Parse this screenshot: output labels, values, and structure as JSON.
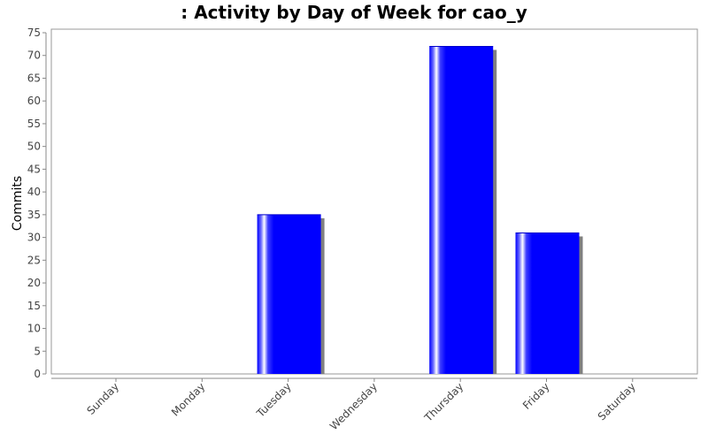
{
  "chart_data": {
    "type": "bar",
    "title": ": Activity by Day of Week for cao_y",
    "xlabel": "",
    "ylabel": "Commits",
    "categories": [
      "Sunday",
      "Monday",
      "Tuesday",
      "Wednesday",
      "Thursday",
      "Friday",
      "Saturday"
    ],
    "values": [
      0,
      0,
      35,
      0,
      72,
      31,
      0
    ],
    "ylim": [
      0,
      75
    ],
    "yticks": [
      0,
      5,
      10,
      15,
      20,
      25,
      30,
      35,
      40,
      45,
      50,
      55,
      60,
      65,
      70,
      75
    ],
    "bar_color": "#0000ff",
    "shadow_color": "#808080",
    "grid": false,
    "legend": "none"
  }
}
